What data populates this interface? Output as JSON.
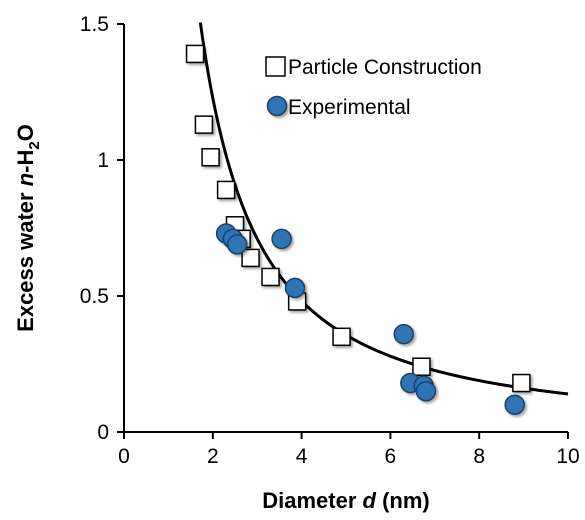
{
  "chart_data": {
    "type": "scatter",
    "xlabel": "Diameter d (nm)",
    "xlabel_parts": {
      "prefix": "Diameter ",
      "var": "d",
      "suffix": " (nm)"
    },
    "ylabel": "Excess water n-H2O",
    "ylabel_parts": {
      "prefix": "Excess water  ",
      "var": "n",
      "mid": "-H",
      "sub": "2",
      "suffix": "O"
    },
    "xlim": [
      0,
      10
    ],
    "ylim": [
      0,
      1.5
    ],
    "xticks": [
      0,
      2,
      4,
      6,
      8,
      10
    ],
    "xtick_labels": [
      "0",
      "2",
      "4",
      "6",
      "8",
      "10"
    ],
    "yticks": [
      0,
      0.5,
      1,
      1.5
    ],
    "ytick_labels": [
      "0",
      "0.5",
      "1",
      "1.5"
    ],
    "grid": false,
    "legend_position": "top-right",
    "series": [
      {
        "name": "Particle Construction",
        "marker": "square",
        "color": "#ffffff",
        "edge_color": "#000000",
        "points": [
          [
            1.6,
            1.39
          ],
          [
            1.8,
            1.13
          ],
          [
            1.95,
            1.01
          ],
          [
            2.3,
            0.89
          ],
          [
            2.5,
            0.76
          ],
          [
            2.65,
            0.71
          ],
          [
            2.85,
            0.64
          ],
          [
            3.3,
            0.57
          ],
          [
            3.9,
            0.48
          ],
          [
            4.9,
            0.35
          ],
          [
            6.7,
            0.24
          ],
          [
            8.95,
            0.18
          ]
        ]
      },
      {
        "name": "Experimental",
        "marker": "circle",
        "color": "#2e75b6",
        "edge_color": "#1f3f66",
        "points": [
          [
            2.3,
            0.73
          ],
          [
            2.45,
            0.71
          ],
          [
            2.55,
            0.69
          ],
          [
            3.55,
            0.71
          ],
          [
            3.85,
            0.53
          ],
          [
            6.3,
            0.36
          ],
          [
            6.45,
            0.18
          ],
          [
            6.75,
            0.17
          ],
          [
            6.8,
            0.15
          ],
          [
            8.8,
            0.1
          ]
        ]
      }
    ],
    "fit_curve": {
      "type": "power",
      "a": 3.13,
      "b": -1.35,
      "x_start": 1.72,
      "x_end": 10,
      "color": "#000000"
    }
  }
}
